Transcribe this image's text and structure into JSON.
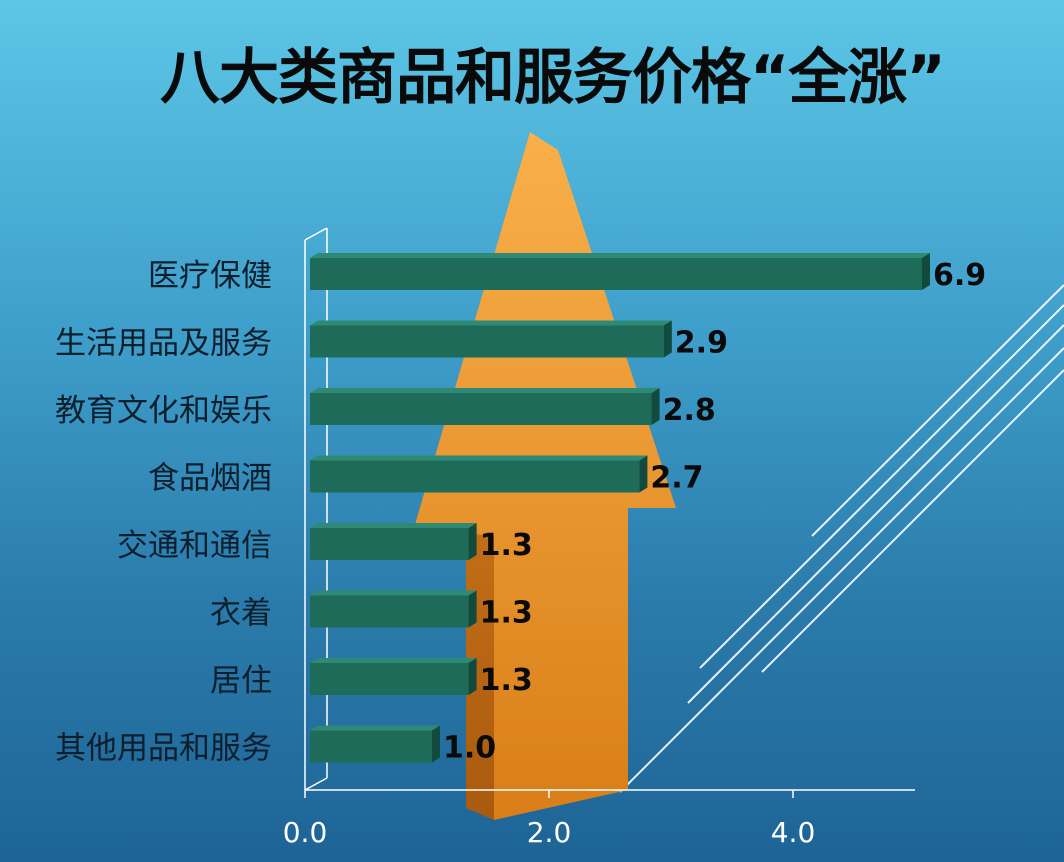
{
  "chart_data": {
    "type": "bar",
    "orientation": "horizontal",
    "title": "八大类商品和服务价格“全涨”",
    "categories": [
      "医疗保健",
      "生活用品及服务",
      "教育文化和娱乐",
      "食品烟酒",
      "交通和通信",
      "衣着",
      "居住",
      "其他用品和服务"
    ],
    "values": [
      6.9,
      2.9,
      2.8,
      2.7,
      1.3,
      1.3,
      1.3,
      1.0
    ],
    "value_labels": [
      "6.9",
      "2.9",
      "2.8",
      "2.7",
      "1.3",
      "1.3",
      "1.3",
      "1.0"
    ],
    "x_ticks": [
      0,
      2,
      4
    ],
    "x_tick_labels": [
      "0.0",
      "2.0",
      "4.0"
    ],
    "xlim": [
      0,
      5
    ],
    "grid": false,
    "legend": "none",
    "colors": {
      "bar_front": "#1e6b5a",
      "bar_top": "#2e8a74",
      "bar_side": "#124a3d",
      "arrow_light": "#f7a13a",
      "arrow_dark": "#c86b12",
      "axis": "#ffffff",
      "label_text": "#0d1f2d"
    }
  }
}
